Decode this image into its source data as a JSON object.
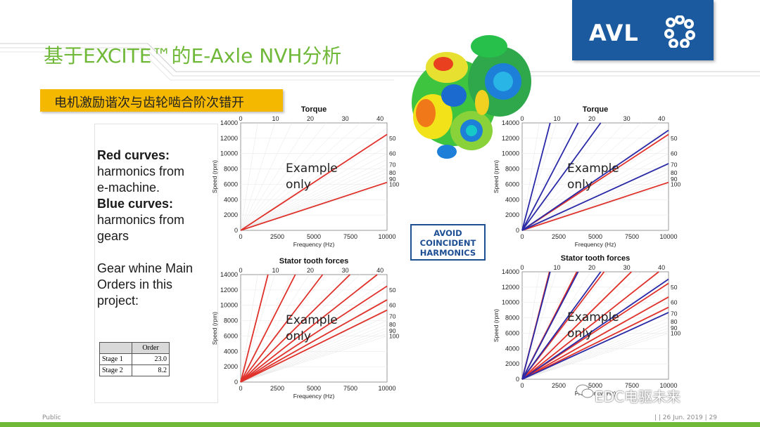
{
  "slide": {
    "title": "基于EXCITE™的E-Axle NVH分析",
    "subtitle": "电机激励谐次与齿轮啮合阶次错开",
    "logo": "AVL",
    "footer_left": "Public",
    "footer_right": "|  | 26 Jun. 2019 | 29",
    "watermark": "EDC电驱未来",
    "avoid_lines": [
      "AVOID",
      "COINCIDENT",
      "HARMONICS"
    ],
    "colors": {
      "title_green": "#6fb838",
      "avl_blue": "#1b5a9e",
      "subtitle_yellow": "#f5b800",
      "red": "#e0312b",
      "blue": "#2a2aa8"
    }
  },
  "legend": {
    "red_head": "Red curves:",
    "red_text": "harmonics from e-machine.",
    "blue_head": "Blue curves:",
    "blue_text": "harmonics from gears",
    "gear_text": "Gear whine Main Orders in this project:"
  },
  "orders_table": {
    "header": "Order",
    "rows": [
      {
        "label": "Stage 1",
        "value": "23.0"
      },
      {
        "label": "Stage 2",
        "value": "8.2"
      }
    ]
  },
  "chart_data": [
    {
      "type": "line",
      "title": "Torque",
      "xlabel": "Frequency (Hz)",
      "ylabel": "Speed (rpm)",
      "xlim": [
        0,
        10000
      ],
      "ylim": [
        0,
        14000
      ],
      "x_ticks": [
        "0",
        "2500",
        "5000",
        "7500",
        "10000"
      ],
      "y_ticks": [
        "0",
        "2000",
        "4000",
        "6000",
        "8000",
        "10000",
        "12000",
        "14000"
      ],
      "top_ticks": [
        "0",
        "10",
        "20",
        "30",
        "40"
      ],
      "right_labels": [
        "50",
        "60",
        "70",
        "80",
        "90",
        "100"
      ],
      "annotation": "Example only",
      "series": [
        {
          "color": "red",
          "orders": [
            48,
            96
          ]
        }
      ]
    },
    {
      "type": "line",
      "title": "Torque",
      "xlabel": "Frequency (Hz)",
      "ylabel": "Speed (rpm)",
      "xlim": [
        0,
        10000
      ],
      "ylim": [
        0,
        14000
      ],
      "x_ticks": [
        "0",
        "2500",
        "5000",
        "7500",
        "10000"
      ],
      "y_ticks": [
        "0",
        "2000",
        "4000",
        "6000",
        "8000",
        "10000",
        "12000",
        "14000"
      ],
      "top_ticks": [
        "0",
        "10",
        "20",
        "30",
        "40"
      ],
      "right_labels": [
        "50",
        "60",
        "70",
        "80",
        "90",
        "100"
      ],
      "annotation": "Example only",
      "series": [
        {
          "color": "red",
          "orders": [
            48,
            96
          ]
        },
        {
          "color": "blue",
          "orders": [
            8.2,
            16.4,
            23,
            46,
            69
          ]
        }
      ]
    },
    {
      "type": "line",
      "title": "Stator tooth forces",
      "xlabel": "Frequency (Hz)",
      "ylabel": "Speed (rpm)",
      "xlim": [
        0,
        10000
      ],
      "ylim": [
        0,
        14000
      ],
      "x_ticks": [
        "0",
        "2500",
        "5000",
        "7500",
        "10000"
      ],
      "y_ticks": [
        "0",
        "2000",
        "4000",
        "6000",
        "8000",
        "10000",
        "12000",
        "14000"
      ],
      "top_ticks": [
        "0",
        "10",
        "20",
        "30",
        "40"
      ],
      "right_labels": [
        "50",
        "60",
        "70",
        "80",
        "90",
        "100"
      ],
      "annotation": "Example only",
      "series": [
        {
          "color": "red",
          "orders": [
            8,
            16,
            24,
            32,
            40,
            48,
            56,
            64
          ]
        }
      ]
    },
    {
      "type": "line",
      "title": "Stator tooth forces",
      "xlabel": "Frequency (Hz)",
      "ylabel": "Speed (rpm)",
      "xlim": [
        0,
        10000
      ],
      "ylim": [
        0,
        14000
      ],
      "x_ticks": [
        "0",
        "2500",
        "5000",
        "7500",
        "10000"
      ],
      "y_ticks": [
        "0",
        "2000",
        "4000",
        "6000",
        "8000",
        "10000",
        "12000",
        "14000"
      ],
      "top_ticks": [
        "0",
        "10",
        "20",
        "30",
        "40"
      ],
      "right_labels": [
        "50",
        "60",
        "70",
        "80",
        "90",
        "100"
      ],
      "annotation": "Example only",
      "series": [
        {
          "color": "red",
          "orders": [
            8,
            16,
            24,
            32,
            40,
            48,
            56,
            64
          ]
        },
        {
          "color": "blue",
          "orders": [
            8.2,
            16.4,
            23,
            46,
            69
          ]
        }
      ]
    }
  ]
}
